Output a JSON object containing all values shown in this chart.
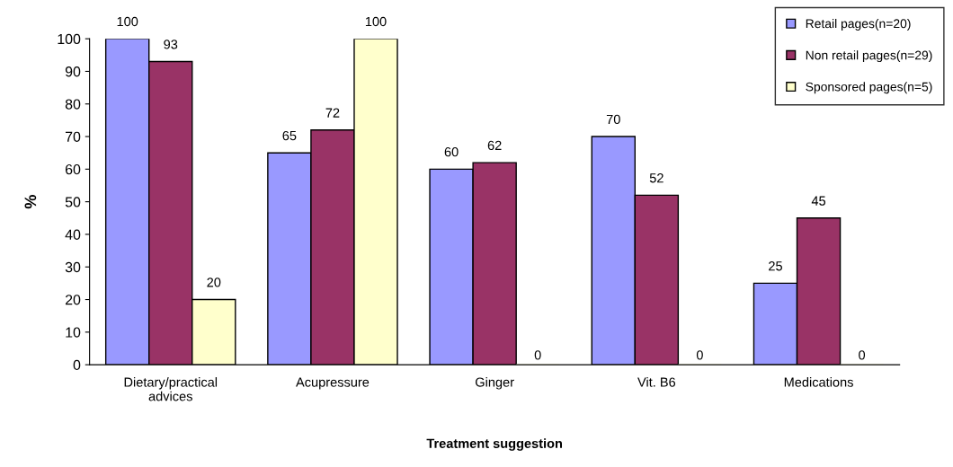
{
  "chart_data": {
    "type": "bar",
    "xlabel": "Treatment suggestion",
    "ylabel": "%",
    "categories": [
      "Dietary/practical\nadvices",
      "Acupressure",
      "Ginger",
      "Vit. B6",
      "Medications"
    ],
    "series": [
      {
        "name": "Retail pages(n=20)",
        "color": "#9999ff",
        "values": [
          100,
          65,
          60,
          70,
          25
        ]
      },
      {
        "name": "Non retail pages(n=29)",
        "color": "#993366",
        "values": [
          93,
          72,
          62,
          52,
          45
        ]
      },
      {
        "name": "Sponsored pages(n=5)",
        "color": "#ffffcc",
        "values": [
          20,
          100,
          0,
          0,
          0
        ]
      }
    ],
    "ylim": [
      0,
      100
    ],
    "yticks": [
      0,
      10,
      20,
      30,
      40,
      50,
      60,
      70,
      80,
      90,
      100
    ],
    "grid": false,
    "legend": "top right",
    "data_labels": true
  }
}
